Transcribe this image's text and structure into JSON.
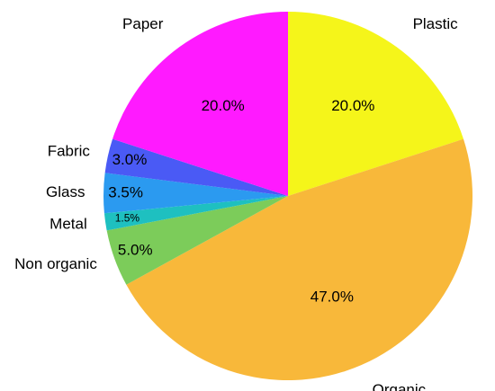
{
  "chart_data": {
    "type": "pie",
    "categories": [
      "Plastic",
      "Organic",
      "Non organic",
      "Metal",
      "Glass",
      "Fabric",
      "Paper"
    ],
    "values": [
      20,
      47,
      5,
      1.5,
      3.5,
      3,
      20
    ],
    "value_labels": [
      "20.0%",
      "47.0%",
      "5.0%",
      "1.5%",
      "3.5%",
      "3.0%",
      "20.0%"
    ],
    "colors": [
      "#f5f51a",
      "#f8b83a",
      "#7ccc5a",
      "#1ec0c0",
      "#2b9af0",
      "#4a5af5",
      "#ff1aff"
    ]
  }
}
